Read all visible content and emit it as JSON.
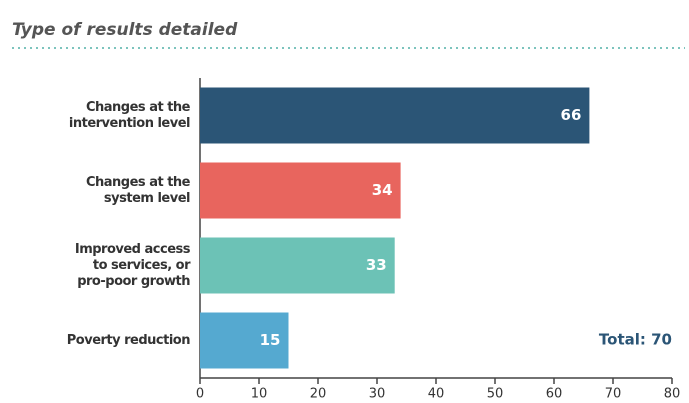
{
  "chart_data": {
    "type": "bar",
    "orientation": "horizontal",
    "title": "Type of results detailed",
    "categories": [
      [
        "Changes at the",
        "intervention level"
      ],
      [
        "Changes at the",
        "system level"
      ],
      [
        "Improved access",
        "to services, or",
        "pro-poor growth"
      ],
      [
        "Poverty reduction"
      ]
    ],
    "values": [
      66,
      34,
      33,
      15
    ],
    "colors": [
      "#2b5576",
      "#e8655e",
      "#6cc2b6",
      "#55a9d0"
    ],
    "xlim": [
      0,
      80
    ],
    "xticks": [
      0,
      10,
      20,
      30,
      40,
      50,
      60,
      70,
      80
    ],
    "annotation": "Total: 70"
  }
}
